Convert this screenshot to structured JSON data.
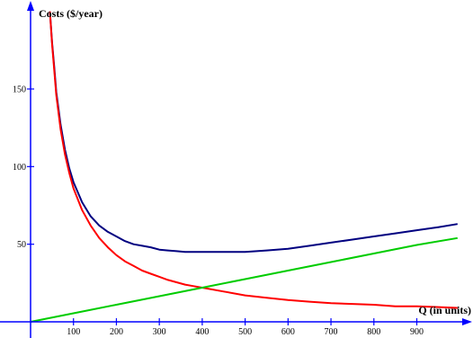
{
  "chart_data": {
    "type": "line",
    "title": "",
    "xlabel": "Q (in units)",
    "ylabel": "Costs ($/year)",
    "xlim": [
      -30,
      1000
    ],
    "ylim": [
      -8,
      200
    ],
    "x_ticks": [
      100,
      200,
      300,
      400,
      500,
      600,
      700,
      800,
      900
    ],
    "y_ticks": [
      50,
      100,
      150
    ],
    "grid": false,
    "legend": "none",
    "axis_color": "#0000ff",
    "series": [
      {
        "color": "#000080",
        "x": [
          45,
          50,
          55,
          60,
          70,
          80,
          90,
          100,
          120,
          140,
          160,
          180,
          200,
          220,
          240,
          260,
          280,
          300,
          320,
          340,
          360,
          380,
          400,
          450,
          500,
          550,
          600,
          650,
          700,
          750,
          800,
          850,
          900,
          950,
          995
        ],
        "y": [
          200,
          180,
          165,
          148,
          127,
          111,
          99,
          90,
          77,
          68,
          62,
          58,
          55,
          52,
          50,
          49,
          48,
          46.5,
          46,
          45.5,
          45,
          45,
          45,
          45,
          45,
          46,
          47,
          49,
          51,
          53,
          55,
          57,
          59,
          61,
          63
        ]
      },
      {
        "color": "#ff0000",
        "x": [
          45,
          50,
          55,
          60,
          70,
          80,
          90,
          100,
          120,
          140,
          160,
          180,
          200,
          220,
          240,
          260,
          280,
          300,
          320,
          340,
          360,
          380,
          400,
          450,
          500,
          550,
          600,
          650,
          700,
          750,
          800,
          850,
          900,
          950,
          995
        ],
        "y": [
          200,
          179,
          163,
          146,
          124,
          108,
          96,
          86,
          72,
          62,
          54,
          48,
          43,
          39,
          36,
          33,
          31,
          29,
          27,
          25.5,
          24,
          23,
          22,
          19.5,
          17,
          15.5,
          14,
          13,
          12,
          11.5,
          11,
          10,
          10,
          9.5,
          9
        ]
      },
      {
        "color": "#00cc00",
        "x": [
          0,
          100,
          200,
          300,
          400,
          500,
          600,
          700,
          800,
          900,
          995
        ],
        "y": [
          0,
          5.5,
          11,
          16.5,
          22,
          27.5,
          33,
          38.5,
          44,
          49.5,
          54
        ]
      }
    ]
  }
}
